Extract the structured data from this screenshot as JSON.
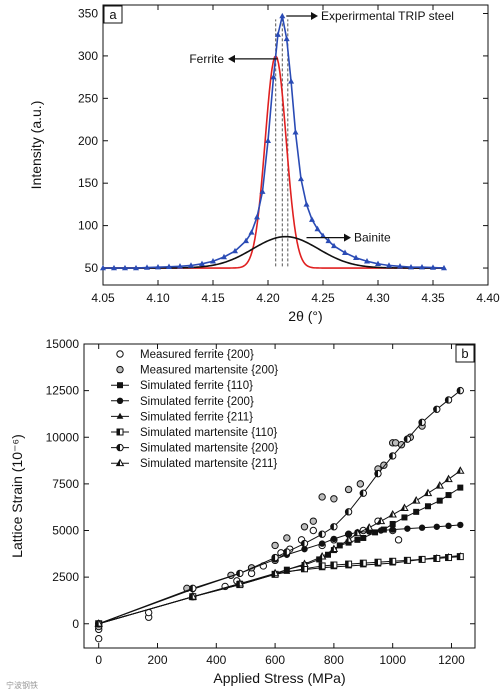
{
  "watermark": "宁波钢铁",
  "chart_data": [
    {
      "type": "line",
      "panel_label": "a",
      "xlabel": "2θ (°)",
      "ylabel": "Intensity (a.u.)",
      "xlim": [
        4.05,
        4.4
      ],
      "ylim": [
        30,
        360
      ],
      "xticks": [
        4.05,
        4.1,
        4.15,
        4.2,
        4.25,
        4.3,
        4.35,
        4.4
      ],
      "xtick_labels": [
        "4.05",
        "4.10",
        "4.15",
        "4.20",
        "4.25",
        "4.30",
        "4.35",
        "4.40"
      ],
      "yticks": [
        50,
        100,
        150,
        200,
        250,
        300,
        350
      ],
      "ytick_labels": [
        "50",
        "100",
        "150",
        "200",
        "250",
        "300",
        "350"
      ],
      "annotations": [
        {
          "text": "Experirmental TRIP steel",
          "target_x": 4.213,
          "target_y": 347
        },
        {
          "text": "Ferrite",
          "target_x": 4.207,
          "target_y": 300
        },
        {
          "text": "Bainite",
          "target_x": 4.235,
          "target_y": 87
        }
      ],
      "dashed_lines_x": [
        4.207,
        4.213,
        4.218
      ],
      "series": [
        {
          "key": "ferrite",
          "color": "#e02020",
          "model": {
            "base": 50,
            "amp": 250,
            "center": 4.207,
            "width": 0.0095,
            "shape": "gauss"
          },
          "x_range": [
            4.05,
            4.36
          ]
        },
        {
          "key": "bainite",
          "color": "#111111",
          "model": {
            "base": 50,
            "amp": 37,
            "center": 4.216,
            "width": 0.03,
            "shape": "gauss"
          },
          "x_range": [
            4.05,
            4.36
          ]
        },
        {
          "key": "experimental",
          "color": "#2a4bb5",
          "marker": "triangle",
          "points": [
            [
              4.05,
              50
            ],
            [
              4.06,
              50
            ],
            [
              4.07,
              50
            ],
            [
              4.08,
              50
            ],
            [
              4.09,
              50.5
            ],
            [
              4.1,
              51
            ],
            [
              4.11,
              51.5
            ],
            [
              4.12,
              52
            ],
            [
              4.13,
              53
            ],
            [
              4.14,
              55
            ],
            [
              4.15,
              58
            ],
            [
              4.16,
              63
            ],
            [
              4.17,
              70
            ],
            [
              4.18,
              82
            ],
            [
              4.185,
              92
            ],
            [
              4.19,
              110
            ],
            [
              4.195,
              140
            ],
            [
              4.2,
              200
            ],
            [
              4.205,
              275
            ],
            [
              4.209,
              325
            ],
            [
              4.213,
              347
            ],
            [
              4.217,
              320
            ],
            [
              4.221,
              270
            ],
            [
              4.225,
              210
            ],
            [
              4.23,
              155
            ],
            [
              4.235,
              125
            ],
            [
              4.24,
              107
            ],
            [
              4.245,
              96
            ],
            [
              4.25,
              88
            ],
            [
              4.255,
              82
            ],
            [
              4.26,
              76
            ],
            [
              4.27,
              68
            ],
            [
              4.28,
              62
            ],
            [
              4.29,
              58
            ],
            [
              4.3,
              55
            ],
            [
              4.31,
              53
            ],
            [
              4.32,
              52
            ],
            [
              4.33,
              51
            ],
            [
              4.34,
              51
            ],
            [
              4.35,
              50.5
            ],
            [
              4.36,
              50
            ]
          ]
        }
      ]
    },
    {
      "type": "line",
      "panel_label": "b",
      "xlabel": "Applied Stress (MPa)",
      "ylabel": "Lattice Strain (10⁻⁶)",
      "xlim": [
        -50,
        1280
      ],
      "ylim": [
        -1300,
        15000
      ],
      "xticks": [
        0,
        200,
        400,
        600,
        800,
        1000,
        1200
      ],
      "xtick_labels": [
        "0",
        "200",
        "400",
        "600",
        "800",
        "1000",
        "1200"
      ],
      "yticks": [
        0,
        2500,
        5000,
        7500,
        10000,
        12500,
        15000
      ],
      "ytick_labels": [
        "0",
        "2500",
        "5000",
        "7500",
        "10000",
        "12500",
        "15000"
      ],
      "legend": [
        {
          "label": "Measured ferrite {200}",
          "marker": "open-circle",
          "line": false
        },
        {
          "label": "Measured martensite {200}",
          "marker": "hatched-circle",
          "line": false
        },
        {
          "label": "Simulated ferrite {110}",
          "marker": "square",
          "line": true
        },
        {
          "label": "Simulated ferrite {200}",
          "marker": "circle",
          "line": true
        },
        {
          "label": "Simulated ferrite {211}",
          "marker": "triangle",
          "line": true
        },
        {
          "label": "Simulated martensite {110}",
          "marker": "half-square",
          "line": true
        },
        {
          "label": "Simulated martensite {200}",
          "marker": "half-circle",
          "line": true
        },
        {
          "label": "Simulated martensite {211}",
          "marker": "half-triangle",
          "line": true
        }
      ],
      "series": [
        {
          "name": "Measured ferrite {200}",
          "marker": "open-circle",
          "points": [
            [
              0,
              -800
            ],
            [
              0,
              -300
            ],
            [
              170,
              350
            ],
            [
              170,
              600
            ],
            [
              320,
              1450
            ],
            [
              430,
              2000
            ],
            [
              470,
              2300
            ],
            [
              520,
              2700
            ],
            [
              560,
              3100
            ],
            [
              600,
              3400
            ],
            [
              620,
              3800
            ],
            [
              650,
              4000
            ],
            [
              690,
              4500
            ],
            [
              730,
              5000
            ],
            [
              760,
              4200
            ],
            [
              800,
              4500
            ],
            [
              850,
              4800
            ],
            [
              900,
              5000
            ],
            [
              950,
              5500
            ],
            [
              1000,
              5000
            ],
            [
              1020,
              4500
            ]
          ]
        },
        {
          "name": "Measured martensite {200}",
          "marker": "hatched-circle",
          "points": [
            [
              0,
              -150
            ],
            [
              300,
              1900
            ],
            [
              450,
              2600
            ],
            [
              520,
              3000
            ],
            [
              600,
              4200
            ],
            [
              640,
              4600
            ],
            [
              700,
              5200
            ],
            [
              730,
              5500
            ],
            [
              760,
              6800
            ],
            [
              800,
              6700
            ],
            [
              850,
              7200
            ],
            [
              890,
              7500
            ],
            [
              950,
              8300
            ],
            [
              970,
              8500
            ],
            [
              1000,
              9700
            ],
            [
              1010,
              9700
            ],
            [
              1030,
              9600
            ],
            [
              1060,
              10000
            ],
            [
              1100,
              10600
            ]
          ]
        },
        {
          "name": "Simulated ferrite {110}",
          "marker": "square",
          "points": [
            [
              0,
              0
            ],
            [
              320,
              1450
            ],
            [
              480,
              2150
            ],
            [
              600,
              2650
            ],
            [
              640,
              2900
            ],
            [
              700,
              3150
            ],
            [
              750,
              3450
            ],
            [
              780,
              3700
            ],
            [
              800,
              3950
            ],
            [
              820,
              4200
            ],
            [
              850,
              4350
            ],
            [
              880,
              4500
            ],
            [
              900,
              4600
            ],
            [
              940,
              4900
            ],
            [
              970,
              5050
            ],
            [
              1000,
              5350
            ],
            [
              1040,
              5700
            ],
            [
              1080,
              6000
            ],
            [
              1120,
              6300
            ],
            [
              1160,
              6600
            ],
            [
              1190,
              6900
            ],
            [
              1230,
              7300
            ]
          ]
        },
        {
          "name": "Simulated ferrite {200}",
          "marker": "circle",
          "points": [
            [
              0,
              0
            ],
            [
              320,
              1850
            ],
            [
              480,
              2700
            ],
            [
              600,
              3450
            ],
            [
              640,
              3700
            ],
            [
              700,
              4000
            ],
            [
              760,
              4300
            ],
            [
              800,
              4550
            ],
            [
              850,
              4800
            ],
            [
              880,
              4900
            ],
            [
              920,
              4950
            ],
            [
              960,
              5000
            ],
            [
              1000,
              5050
            ],
            [
              1050,
              5100
            ],
            [
              1100,
              5150
            ],
            [
              1150,
              5200
            ],
            [
              1190,
              5250
            ],
            [
              1230,
              5300
            ]
          ]
        },
        {
          "name": "Simulated ferrite {211}",
          "marker": "triangle",
          "points": [
            [
              0,
              0
            ],
            [
              320,
              1450
            ],
            [
              480,
              2100
            ],
            [
              600,
              2650
            ],
            [
              640,
              2800
            ],
            [
              700,
              2900
            ],
            [
              760,
              3000
            ],
            [
              800,
              3050
            ],
            [
              850,
              3100
            ],
            [
              900,
              3150
            ],
            [
              950,
              3200
            ],
            [
              1000,
              3250
            ],
            [
              1050,
              3350
            ],
            [
              1100,
              3450
            ],
            [
              1150,
              3550
            ],
            [
              1190,
              3600
            ],
            [
              1230,
              3650
            ]
          ]
        },
        {
          "name": "Simulated martensite {110}",
          "marker": "half-square",
          "points": [
            [
              0,
              0
            ],
            [
              320,
              1450
            ],
            [
              480,
              2100
            ],
            [
              600,
              2650
            ],
            [
              700,
              2950
            ],
            [
              760,
              3100
            ],
            [
              800,
              3150
            ],
            [
              850,
              3200
            ],
            [
              900,
              3250
            ],
            [
              950,
              3300
            ],
            [
              1000,
              3350
            ],
            [
              1050,
              3400
            ],
            [
              1100,
              3450
            ],
            [
              1150,
              3500
            ],
            [
              1190,
              3550
            ],
            [
              1230,
              3600
            ]
          ]
        },
        {
          "name": "Simulated martensite {200}",
          "marker": "half-circle",
          "points": [
            [
              0,
              0
            ],
            [
              320,
              1900
            ],
            [
              480,
              2700
            ],
            [
              600,
              3550
            ],
            [
              640,
              3850
            ],
            [
              700,
              4300
            ],
            [
              760,
              4800
            ],
            [
              800,
              5200
            ],
            [
              850,
              6000
            ],
            [
              900,
              7000
            ],
            [
              950,
              8050
            ],
            [
              1000,
              9000
            ],
            [
              1050,
              9900
            ],
            [
              1100,
              10800
            ],
            [
              1150,
              11500
            ],
            [
              1190,
              12000
            ],
            [
              1230,
              12500
            ]
          ]
        },
        {
          "name": "Simulated martensite {211}",
          "marker": "half-triangle",
          "points": [
            [
              0,
              0
            ],
            [
              320,
              1450
            ],
            [
              480,
              2150
            ],
            [
              600,
              2700
            ],
            [
              700,
              3200
            ],
            [
              760,
              3600
            ],
            [
              800,
              4000
            ],
            [
              850,
              4500
            ],
            [
              880,
              4850
            ],
            [
              920,
              5150
            ],
            [
              960,
              5500
            ],
            [
              1000,
              5850
            ],
            [
              1040,
              6200
            ],
            [
              1080,
              6600
            ],
            [
              1120,
              7000
            ],
            [
              1160,
              7400
            ],
            [
              1190,
              7750
            ],
            [
              1230,
              8200
            ]
          ]
        }
      ]
    }
  ]
}
